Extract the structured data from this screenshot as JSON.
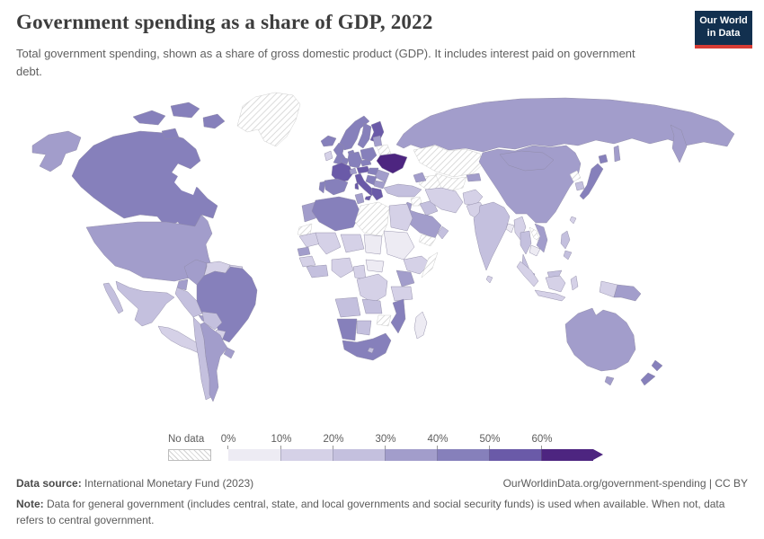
{
  "header": {
    "title": "Government spending as a share of GDP, 2022",
    "subtitle": "Total government spending, shown as a share of gross domestic product (GDP). It includes interest paid on government debt.",
    "logo": {
      "line1": "Our World",
      "line2": "in Data"
    },
    "logo_colors": {
      "background": "#12304f",
      "accent": "#d73c34"
    }
  },
  "legend": {
    "no_data_label": "No data"
  },
  "footer": {
    "source_label": "Data source:",
    "source_value": "International Monetary Fund (2023)",
    "link_text": "OurWorldinData.org/government-spending",
    "separator": "|",
    "license": "CC BY",
    "note_label": "Note:",
    "note_text": "Data for general government (includes central, state, and local governments and social security funds) is used when available. When not, data refers to central government."
  },
  "chart_data": {
    "type": "choropleth",
    "title": "Government spending as a share of GDP, 2022",
    "unit": "share of GDP (%)",
    "year": 2022,
    "legend_position": "bottom",
    "no_data_label": "No data",
    "legend_bands": [
      {
        "tick": "0%",
        "range": "0-10%",
        "color": "#edebf3"
      },
      {
        "tick": "10%",
        "range": "10-20%",
        "color": "#d5d1e7"
      },
      {
        "tick": "20%",
        "range": "20-30%",
        "color": "#c4c0de"
      },
      {
        "tick": "30%",
        "range": "30-40%",
        "color": "#a29dcb"
      },
      {
        "tick": "40%",
        "range": "40-50%",
        "color": "#8680bb"
      },
      {
        "tick": "50%",
        "range": "50-60%",
        "color": "#6a5aa8"
      },
      {
        "tick": "60%",
        "range": "60%+",
        "color": "#4d2580"
      }
    ],
    "countries": {
      "Greenland": "nd",
      "Iceland": 4,
      "Canada": 4,
      "United States": 3,
      "Mexico": 2,
      "Cuba": 3,
      "Hispaniola": 1,
      "Central America": 1,
      "Colombia": 3,
      "Venezuela": 1,
      "Guyana": 1,
      "Ecuador": 3,
      "Peru": 2,
      "Brazil": 4,
      "Bolivia": 2,
      "Paraguay": 1,
      "Chile": 2,
      "Argentina": 3,
      "Uruguay": 3,
      "Ireland": 1,
      "United Kingdom": 4,
      "Norway": 4,
      "Sweden": 4,
      "Finland": 5,
      "Denmark": 4,
      "Germany": 4,
      "Benelux": 4,
      "France": 5,
      "Spain": 4,
      "Portugal": 4,
      "Switzerland": 3,
      "Italy": 5,
      "Austria": 5,
      "Czechia": 4,
      "Poland": 4,
      "Hungary": 4,
      "Balkans": 4,
      "Greece": 5,
      "Bulgaria": 3,
      "Romania": 3,
      "Ukraine": 6,
      "Belarus": "nd",
      "Baltic states": 3,
      "Russia": 3,
      "Kazakhstan": "nd",
      "Uzbekistan": "nd",
      "Turkmenistan": "nd",
      "Kyrgyzstan": 3,
      "Caucasus": 3,
      "Turkey": 2,
      "Syria": "nd",
      "Iraq": 2,
      "Levant": 3,
      "Saudi Arabia": 3,
      "Yemen": "nd",
      "Oman": 2,
      "Iran": 1,
      "Afghanistan": 1,
      "Pakistan": 1,
      "India": 2,
      "Bangladesh": 0,
      "Sri Lanka": 1,
      "Myanmar": 1,
      "Thailand": 2,
      "Laos": "nd",
      "Vietnam": 3,
      "Cambodia": 0,
      "Malaysia": 2,
      "Indonesia": 1,
      "Philippines": 2,
      "Taiwan": 1,
      "China": 3,
      "Mongolia": 3,
      "North Korea": "nd",
      "South Korea": 2,
      "Japan": 4,
      "Morocco": 3,
      "Western Sahara": "nd",
      "Algeria": 4,
      "Tunisia": 3,
      "Libya": "nd",
      "Egypt": 1,
      "Mauritania": 1,
      "Mali": 1,
      "Niger": 1,
      "Chad": 0,
      "Sudan": 0,
      "Ethiopia": 1,
      "Somalia": "nd",
      "Senegal": 3,
      "Guinea": 1,
      "West Africa coast": 2,
      "Nigeria": 1,
      "Cameroon": 1,
      "Central African Republic": 0,
      "DR Congo": 1,
      "Kenya": 3,
      "Tanzania": 1,
      "Angola": 2,
      "Zambia": 2,
      "Mozambique": 4,
      "Zimbabwe": "nd",
      "Botswana": 2,
      "Namibia": 4,
      "South Africa": 4,
      "Lesotho": 2,
      "Madagascar": 0,
      "Australia": 3,
      "New Zealand": 4,
      "Papua New Guinea": 3
    }
  }
}
